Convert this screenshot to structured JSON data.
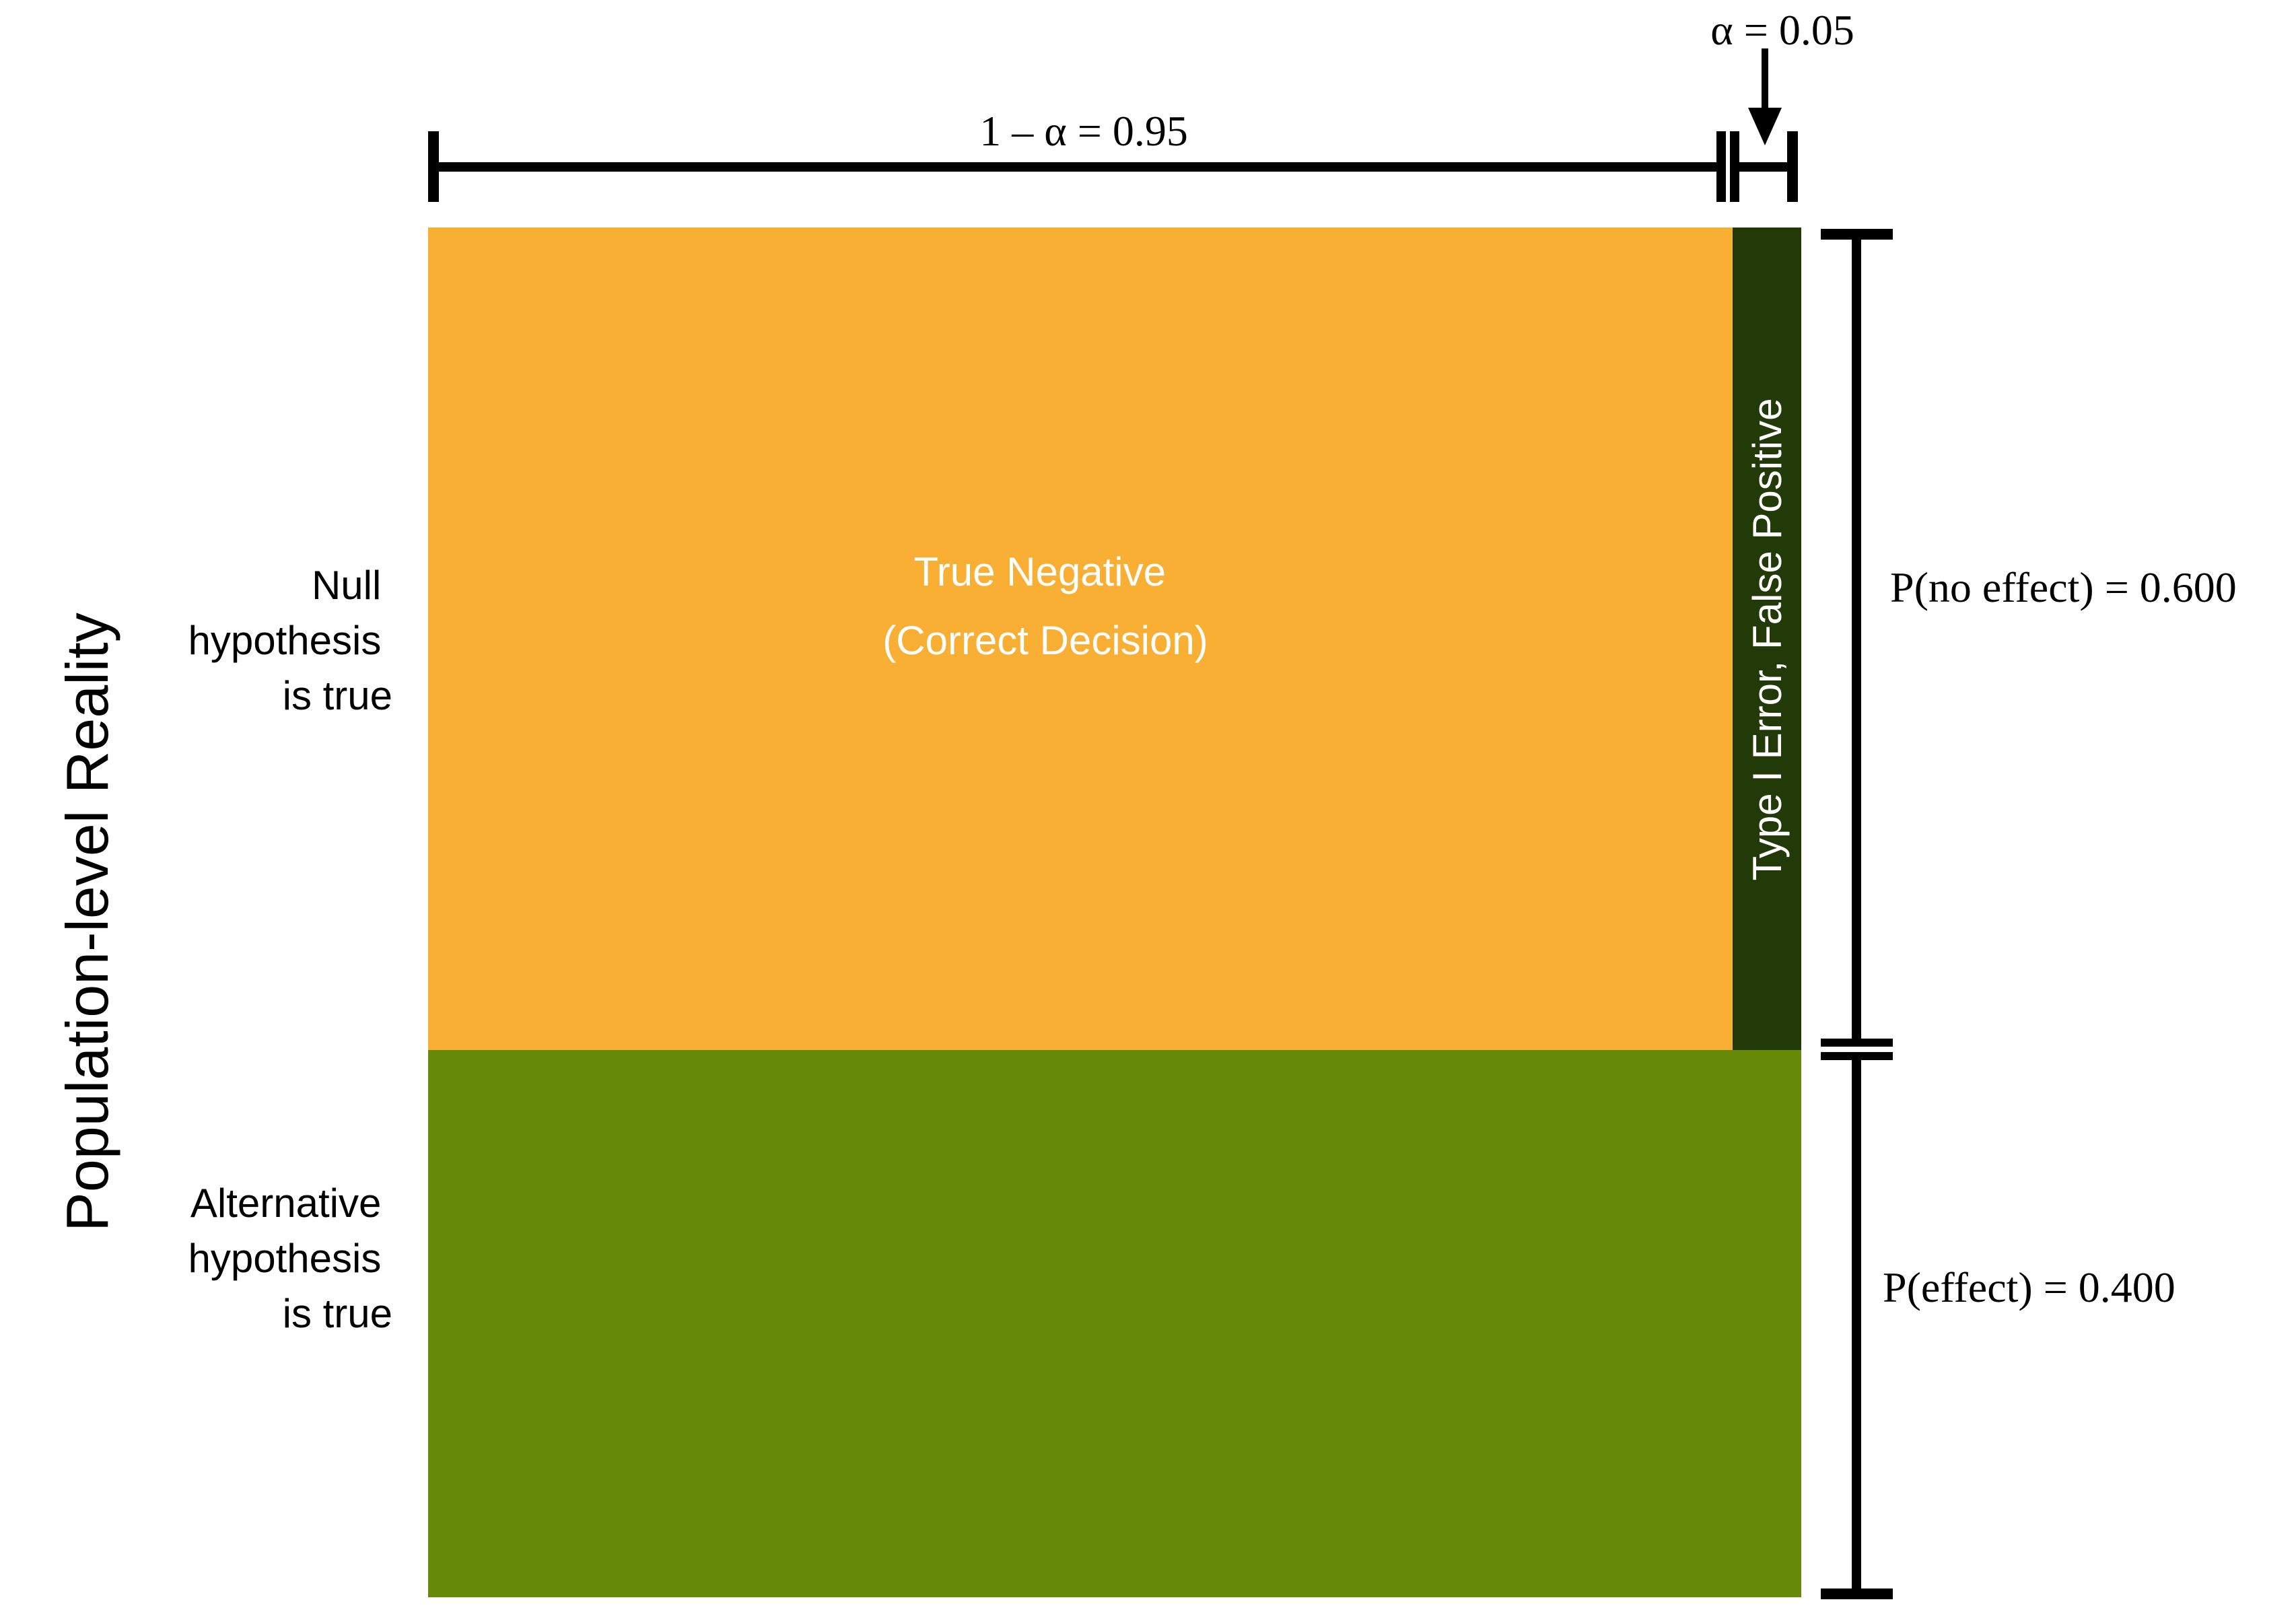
{
  "y_axis_title": "Population-level Reality",
  "rows": [
    {
      "label_lines": [
        "Null",
        "hypothesis",
        "is true"
      ]
    },
    {
      "label_lines": [
        "Alternative",
        "hypothesis",
        "is true"
      ]
    }
  ],
  "cells": {
    "true_negative": {
      "lines": [
        "True Negative",
        "(Correct Decision)"
      ],
      "color": "#F8AF34"
    },
    "type1_error": {
      "label": "Type I Error, False Positive",
      "color": "#223A07"
    },
    "alternative": {
      "color": "#678908"
    }
  },
  "top_bracket": {
    "one_minus_alpha_label": "1 – α = 0.95",
    "alpha_label": "α = 0.05"
  },
  "right_bracket": {
    "no_effect_label": "P(no effect) = 0.600",
    "effect_label": "P(effect) = 0.400"
  },
  "values": {
    "alpha": 0.05,
    "one_minus_alpha": 0.95,
    "p_no_effect": 0.6,
    "p_effect": 0.4
  }
}
